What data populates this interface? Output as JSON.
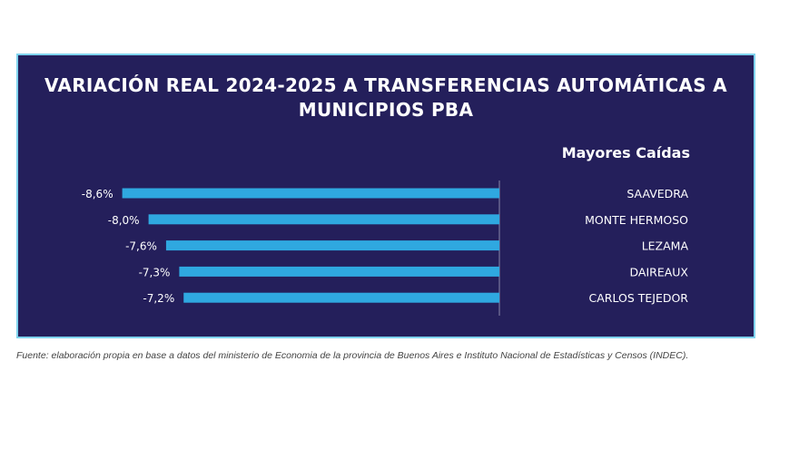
{
  "chart_data": {
    "type": "bar",
    "orientation": "horizontal",
    "title": "VARIACIÓN REAL 2024-2025 A TRANSFERENCIAS AUTOMÁTICAS A MUNICIPIOS PBA",
    "subtitle": "Mayores Caídas",
    "categories": [
      "SAAVEDRA",
      "MONTE HERMOSO",
      "LEZAMA",
      "DAIREAUX",
      "CARLOS TEJEDOR"
    ],
    "values": [
      -8.6,
      -8.0,
      -7.6,
      -7.3,
      -7.2
    ],
    "data_labels": [
      "-8,6%",
      "-8,0%",
      "-7,6%",
      "-7,3%",
      "-7,2%"
    ],
    "grid": false,
    "colors": {
      "background": "#241f5b",
      "bar": "#2fa8e0",
      "border": "#7fd3ee",
      "text": "#ffffff"
    }
  },
  "source": "Fuente: elaboración propia en base a datos del ministerio de Economia de la provincia de Buenos Aires e Instituto Nacional de Estadísticas y Censos (INDEC)."
}
